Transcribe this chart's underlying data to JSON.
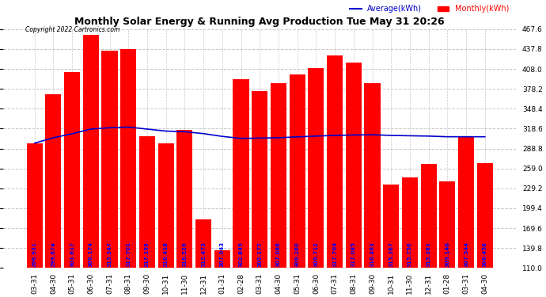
{
  "title": "Monthly Solar Energy & Running Avg Production Tue May 31 20:26",
  "copyright": "Copyright 2022 Cartronics.com",
  "categories": [
    "03-31",
    "04-30",
    "05-31",
    "06-30",
    "07-31",
    "08-31",
    "09-30",
    "10-31",
    "11-30",
    "12-31",
    "01-31",
    "02-28",
    "03-31",
    "04-30",
    "05-31",
    "06-30",
    "07-31",
    "08-31",
    "09-30",
    "10-31",
    "11-30",
    "12-31",
    "01-28",
    "03-31",
    "04-30"
  ],
  "bar_values": [
    296.931,
    369.674,
    403.617,
    459.174,
    435.347,
    437.701,
    307.155,
    296.418,
    316.539,
    182.473,
    137.043,
    392.845,
    375.177,
    387.088,
    399.26,
    409.712,
    427.709,
    417.085,
    386.463,
    235.367,
    245.756,
    265.381,
    239.146,
    307.544,
    266.456
  ],
  "avg_values": [
    296.931,
    305.0,
    311.0,
    318.0,
    320.0,
    321.0,
    318.0,
    315.0,
    314.0,
    311.2,
    307.043,
    304.0,
    304.5,
    305.0,
    306.3,
    307.5,
    308.5,
    309.1,
    309.5,
    308.5,
    308.0,
    307.5,
    306.5,
    306.5,
    306.456
  ],
  "bar_color": "#ff0000",
  "avg_line_color": "#0000cc",
  "bg_color": "#ffffff",
  "grid_color": "#c8c8c8",
  "title_color": "#000000",
  "ylabel_right_ticks": [
    110.0,
    139.8,
    169.6,
    199.4,
    229.2,
    259.0,
    288.8,
    318.6,
    348.4,
    378.2,
    408.0,
    437.8,
    467.6
  ],
  "ylim": [
    110.0,
    467.6
  ],
  "legend_avg": "Average(kWh)",
  "legend_monthly": "Monthly(kWh)",
  "bar_label_values": [
    "296.931",
    "299.674",
    "303.617",
    "309.174",
    "315.347",
    "317.701",
    "317.155",
    "316.418",
    "316.539",
    "312.473",
    "307.043",
    "302.845",
    "305.177",
    "307.088",
    "309.260",
    "309.712",
    "317.709",
    "317.085",
    "316.463",
    "315.367",
    "315.756",
    "315.381",
    "309.146",
    "307.544",
    "306.456"
  ],
  "bar_label_color": "#0000ff",
  "title_fontsize": 9,
  "tick_fontsize": 6.5,
  "label_fontsize": 5.0
}
